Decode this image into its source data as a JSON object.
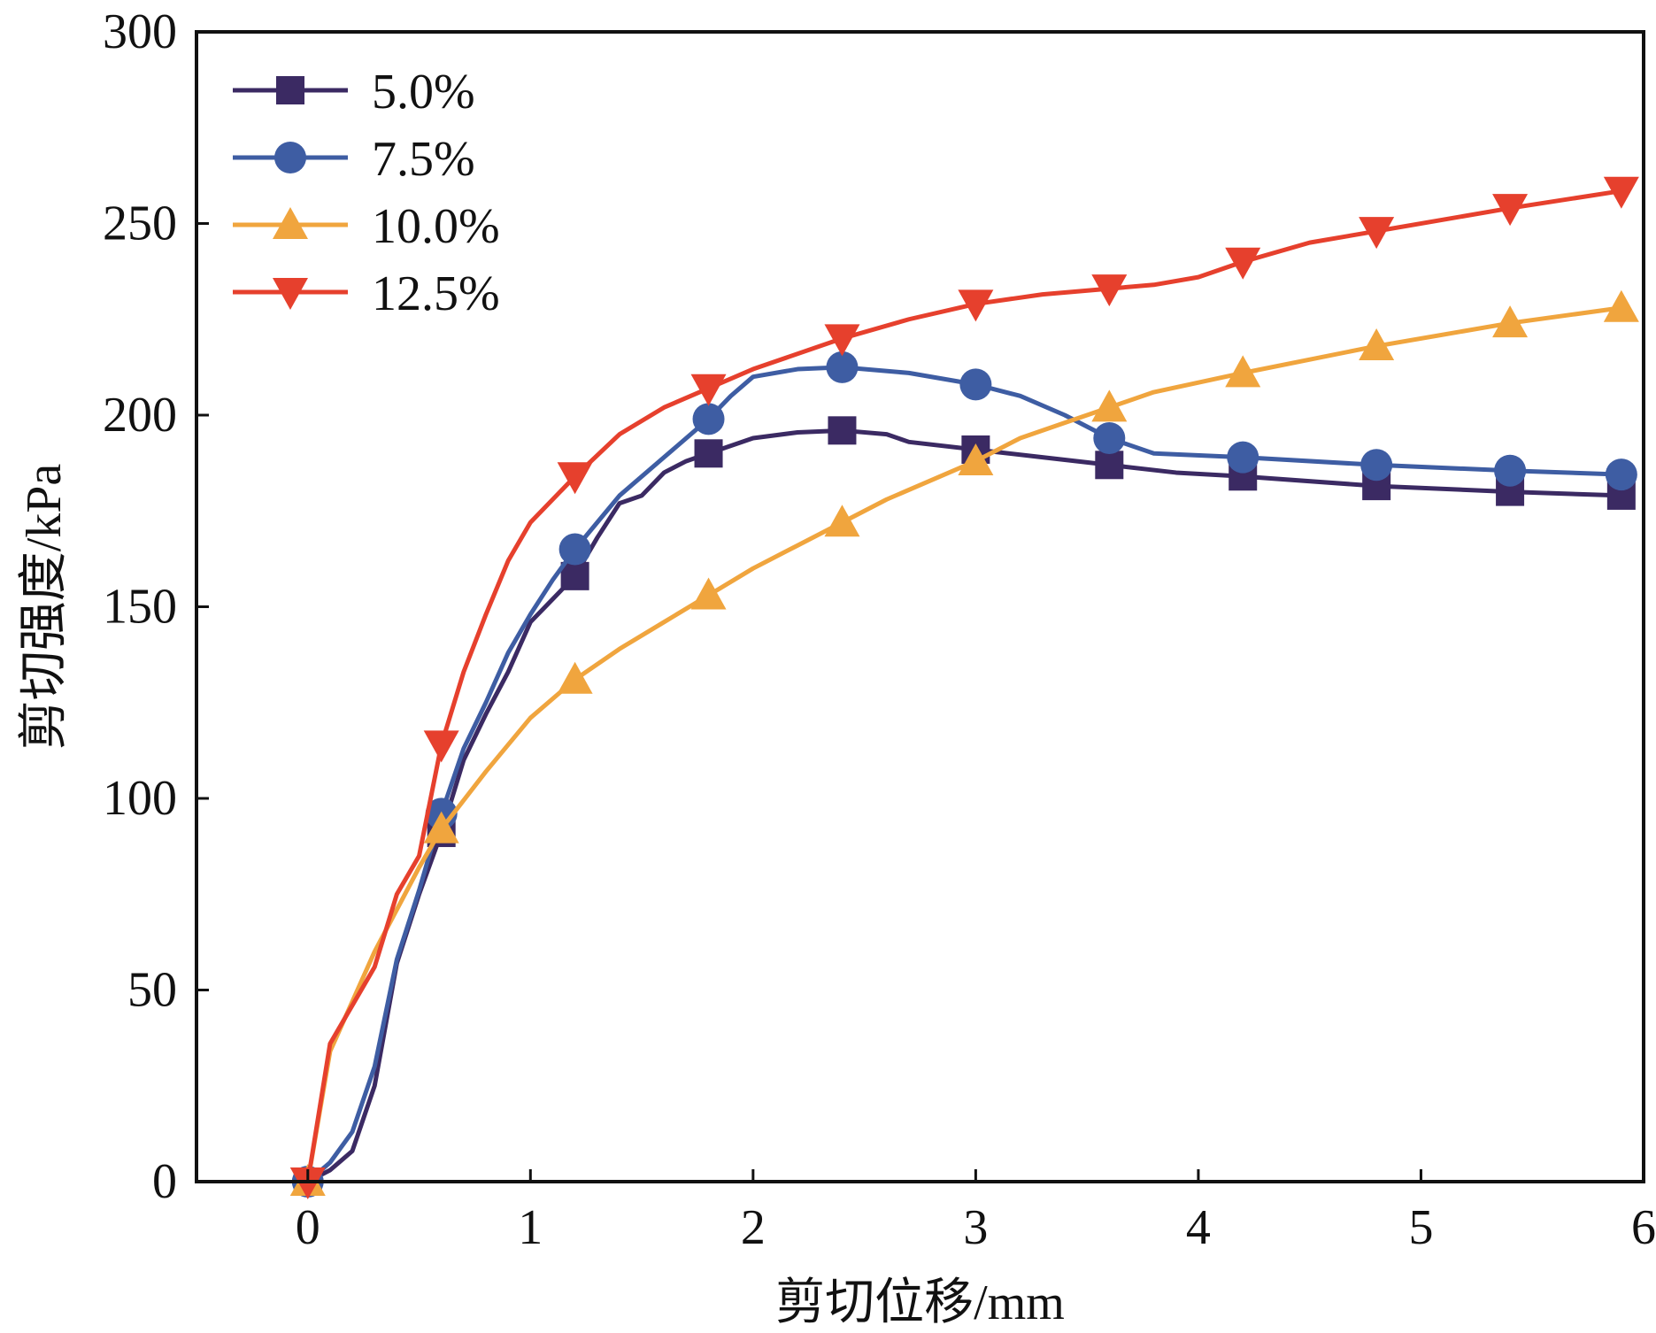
{
  "chart_data": {
    "type": "line",
    "title": "",
    "xlabel": "剪切位移/mm",
    "ylabel": "剪切强度/kPa",
    "xlim": [
      -0.5,
      6
    ],
    "ylim": [
      0,
      300
    ],
    "xticks": [
      0,
      1,
      2,
      3,
      4,
      5,
      6
    ],
    "yticks": [
      0,
      50,
      100,
      150,
      200,
      250,
      300
    ],
    "grid": false,
    "legend_position": "top-left",
    "marker_x": [
      0,
      0.6,
      1.2,
      1.8,
      2.4,
      3.0,
      3.6,
      4.2,
      4.8,
      5.4,
      5.9
    ],
    "series": [
      {
        "name": "5.0%",
        "color": "#3b2a63",
        "marker": "square",
        "x": [
          0,
          0.1,
          0.2,
          0.3,
          0.4,
          0.5,
          0.6,
          0.7,
          0.8,
          0.9,
          1.0,
          1.1,
          1.2,
          1.3,
          1.4,
          1.5,
          1.6,
          1.7,
          1.8,
          2.0,
          2.2,
          2.4,
          2.6,
          2.7,
          3.0,
          3.3,
          3.6,
          3.9,
          4.2,
          4.8,
          5.4,
          5.9
        ],
        "y": [
          0,
          3,
          8,
          25,
          57,
          75,
          91,
          110,
          122,
          133,
          146,
          152,
          158,
          168,
          177,
          179,
          185,
          188,
          190,
          194,
          195.5,
          196,
          195,
          193,
          191,
          189,
          187,
          185,
          184,
          181.5,
          180,
          179
        ]
      },
      {
        "name": "7.5%",
        "color": "#3e5da3",
        "marker": "circle",
        "x": [
          0,
          0.1,
          0.2,
          0.3,
          0.4,
          0.5,
          0.6,
          0.7,
          0.8,
          0.9,
          1.0,
          1.1,
          1.2,
          1.3,
          1.4,
          1.6,
          1.8,
          1.9,
          2.0,
          2.2,
          2.4,
          2.7,
          3.0,
          3.2,
          3.4,
          3.6,
          3.8,
          4.2,
          4.8,
          5.4,
          5.9
        ],
        "y": [
          0,
          5,
          13,
          30,
          58,
          76,
          96,
          113,
          125,
          138,
          148,
          157,
          165,
          172,
          179,
          189,
          199,
          205,
          210,
          212,
          212.5,
          211,
          208,
          205,
          200,
          194,
          190,
          189,
          187,
          185.5,
          184.5
        ]
      },
      {
        "name": "10.0%",
        "color": "#f0a53e",
        "marker": "triangle-up",
        "x": [
          0,
          0.1,
          0.2,
          0.3,
          0.4,
          0.5,
          0.6,
          0.8,
          1.0,
          1.2,
          1.4,
          1.6,
          1.8,
          2.0,
          2.2,
          2.4,
          2.6,
          3.0,
          3.2,
          3.4,
          3.6,
          3.8,
          4.2,
          4.8,
          5.4,
          5.9
        ],
        "y": [
          0,
          34,
          47,
          60,
          71,
          82,
          92,
          107,
          121,
          131,
          139,
          146,
          153,
          160,
          166,
          172,
          178,
          188,
          194,
          198,
          202,
          206,
          211,
          218,
          224,
          228
        ]
      },
      {
        "name": "12.5%",
        "color": "#e6402d",
        "marker": "triangle-down",
        "x": [
          0,
          0.1,
          0.2,
          0.3,
          0.4,
          0.5,
          0.6,
          0.7,
          0.8,
          0.9,
          1.0,
          1.2,
          1.4,
          1.6,
          1.8,
          2.0,
          2.4,
          2.7,
          3.0,
          3.3,
          3.6,
          3.8,
          4.0,
          4.2,
          4.5,
          4.8,
          5.4,
          5.9
        ],
        "y": [
          0,
          36,
          46,
          56,
          75,
          85,
          114,
          133,
          148,
          162,
          172,
          184,
          195,
          202,
          207,
          212,
          220,
          225,
          229,
          231.5,
          233,
          234,
          236,
          240,
          245,
          248,
          254,
          258.5
        ]
      }
    ]
  }
}
